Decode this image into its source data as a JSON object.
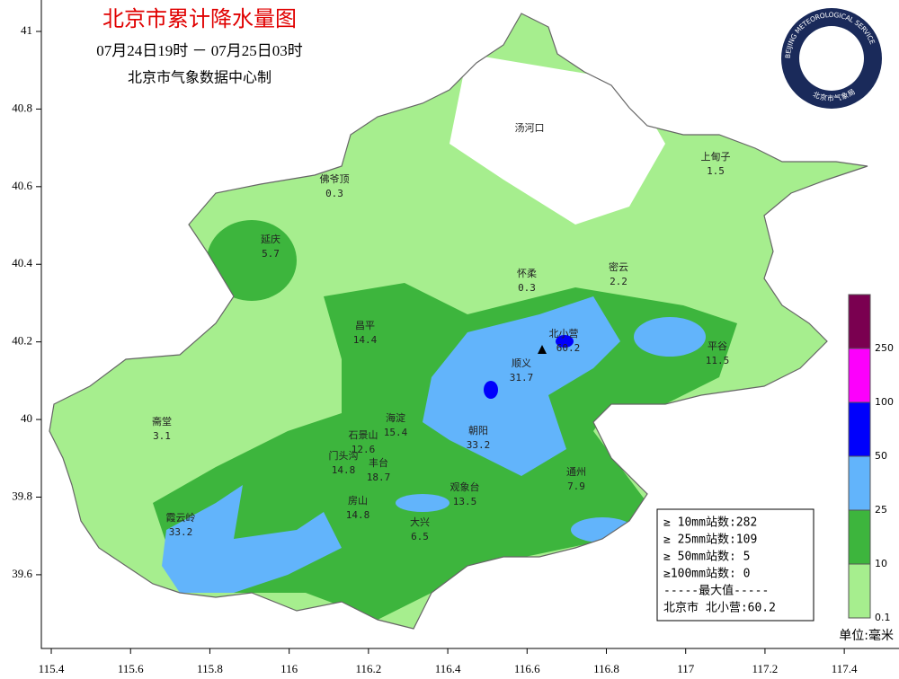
{
  "title": "北京市累计降水量图",
  "time_range": "07月24日19时 － 07月25日03时",
  "producer": "北京市气象数据中心制",
  "logo": {
    "text_en": "BEIJING METEOROLOGICAL SERVICE",
    "text_cn": "北京市气象局"
  },
  "map": {
    "xlim": [
      115.375,
      117.538
    ],
    "ylim": [
      39.41,
      41.081
    ],
    "xticks": [
      115.4,
      115.6,
      115.8,
      116,
      116.2,
      116.4,
      116.6,
      116.8,
      117,
      117.2,
      117.4
    ],
    "yticks": [
      39.6,
      39.8,
      40,
      40.2,
      40.4,
      40.6,
      40.8,
      41
    ]
  },
  "stations": [
    {
      "name": "汤河口",
      "value": null
    },
    {
      "name": "上甸子",
      "value": 1.5
    },
    {
      "name": "佛爷顶",
      "value": 0.3
    },
    {
      "name": "延庆",
      "value": 5.7
    },
    {
      "name": "怀柔",
      "value": 0.3
    },
    {
      "name": "密云",
      "value": 2.2
    },
    {
      "name": "昌平",
      "value": 14.4
    },
    {
      "name": "北小营",
      "value": 60.2
    },
    {
      "name": "顺义",
      "value": 31.7
    },
    {
      "name": "平谷",
      "value": 11.5
    },
    {
      "name": "斋堂",
      "value": 3.1
    },
    {
      "name": "海淀",
      "value": 15.4
    },
    {
      "name": "石景山",
      "value": 12.6
    },
    {
      "name": "朝阳",
      "value": 33.2
    },
    {
      "name": "门头沟",
      "value": 14.8
    },
    {
      "name": "丰台",
      "value": 18.7
    },
    {
      "name": "通州",
      "value": 7.9
    },
    {
      "name": "观象台",
      "value": 13.5
    },
    {
      "name": "房山",
      "value": 14.8
    },
    {
      "name": "霞云岭",
      "value": 33.2
    },
    {
      "name": "大兴",
      "value": 6.5
    }
  ],
  "stats": [
    "≥ 10mm站数:282",
    "≥ 25mm站数:109",
    "≥ 50mm站数: 5",
    "≥100mm站数: 0",
    "-----最大值-----",
    "北京市 北小营:60.2"
  ],
  "legend": {
    "levels": [
      0.1,
      10,
      25,
      50,
      100,
      250
    ],
    "colors": [
      "#a6ee8e",
      "#3db53d",
      "#62b4fb",
      "#0000fc",
      "#fc00fc",
      "#7a0050"
    ]
  },
  "unit": "单位:毫米"
}
